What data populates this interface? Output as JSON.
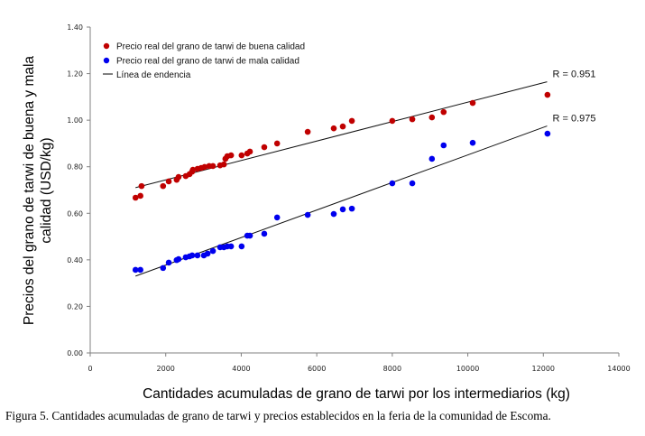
{
  "chart_data": {
    "type": "scatter",
    "title": "",
    "xlabel": "Cantidades acumuladas de grano de tarwi por los intermediarios (kg)",
    "ylabel_lines": [
      "Precios del grano de tarwi de buena y mala",
      "calidad (USD/kg)"
    ],
    "xlim": [
      0,
      14000
    ],
    "ylim": [
      0,
      1.4
    ],
    "x_ticks": [
      0,
      2000,
      4000,
      6000,
      8000,
      10000,
      12000,
      14000
    ],
    "x_tick_labels": [
      "0",
      "2000",
      "4000",
      "6000",
      "8000",
      "10000",
      "12000",
      "14000"
    ],
    "y_ticks": [
      0,
      0.2,
      0.4,
      0.6,
      0.8,
      1.0,
      1.2,
      1.4
    ],
    "y_tick_labels": [
      "0.00",
      "0.20",
      "0.40",
      "0.60",
      "0.80",
      "1.00",
      "1.20",
      "1.40"
    ],
    "grid": false,
    "legend_position": "top-left",
    "legend": [
      {
        "label": "Precio real del grano de tarwi de buena calidad",
        "marker": "dot",
        "color": "#c00000"
      },
      {
        "label": "Precio real del grano de tarwi de mala calidad",
        "marker": "dot",
        "color": "#0000ee"
      },
      {
        "label": "Línea de endencia",
        "marker": "line",
        "color": "#000000"
      }
    ],
    "series": [
      {
        "name": "Precio real del grano de tarwi de buena calidad",
        "color": "#c00000",
        "points": [
          [
            1200,
            0.667
          ],
          [
            1330,
            0.675
          ],
          [
            1360,
            0.717
          ],
          [
            1930,
            0.717
          ],
          [
            2080,
            0.737
          ],
          [
            2290,
            0.744
          ],
          [
            2340,
            0.756
          ],
          [
            2530,
            0.76
          ],
          [
            2630,
            0.768
          ],
          [
            2700,
            0.779
          ],
          [
            2720,
            0.787
          ],
          [
            2840,
            0.791
          ],
          [
            2940,
            0.795
          ],
          [
            3030,
            0.799
          ],
          [
            3150,
            0.803
          ],
          [
            3250,
            0.803
          ],
          [
            3440,
            0.806
          ],
          [
            3540,
            0.81
          ],
          [
            3580,
            0.834
          ],
          [
            3630,
            0.845
          ],
          [
            3730,
            0.849
          ],
          [
            4010,
            0.849
          ],
          [
            4160,
            0.857
          ],
          [
            4230,
            0.865
          ],
          [
            4610,
            0.884
          ],
          [
            4950,
            0.9
          ],
          [
            5760,
            0.95
          ],
          [
            6450,
            0.965
          ],
          [
            6690,
            0.973
          ],
          [
            6930,
            0.997
          ],
          [
            8000,
            0.997
          ],
          [
            8530,
            1.004
          ],
          [
            9050,
            1.012
          ],
          [
            9360,
            1.035
          ],
          [
            10130,
            1.074
          ],
          [
            12110,
            1.109
          ]
        ],
        "trendline": {
          "x": [
            1200,
            12100
          ],
          "y": [
            0.71,
            1.165
          ]
        },
        "r2_label": "R  = 0.951"
      },
      {
        "name": "Precio real del grano de tarwi de mala calidad",
        "color": "#0000ee",
        "points": [
          [
            1200,
            0.357
          ],
          [
            1330,
            0.357
          ],
          [
            1930,
            0.365
          ],
          [
            2080,
            0.388
          ],
          [
            2290,
            0.399
          ],
          [
            2340,
            0.403
          ],
          [
            2530,
            0.411
          ],
          [
            2630,
            0.415
          ],
          [
            2700,
            0.419
          ],
          [
            2840,
            0.419
          ],
          [
            3010,
            0.419
          ],
          [
            3110,
            0.427
          ],
          [
            3250,
            0.438
          ],
          [
            3440,
            0.454
          ],
          [
            3540,
            0.454
          ],
          [
            3630,
            0.458
          ],
          [
            3730,
            0.458
          ],
          [
            4010,
            0.458
          ],
          [
            4160,
            0.504
          ],
          [
            4230,
            0.504
          ],
          [
            4610,
            0.512
          ],
          [
            4950,
            0.582
          ],
          [
            5760,
            0.593
          ],
          [
            6450,
            0.597
          ],
          [
            6690,
            0.617
          ],
          [
            6930,
            0.62
          ],
          [
            8000,
            0.729
          ],
          [
            8530,
            0.729
          ],
          [
            9050,
            0.834
          ],
          [
            9360,
            0.892
          ],
          [
            10130,
            0.903
          ],
          [
            12110,
            0.942
          ]
        ],
        "trendline": {
          "x": [
            1200,
            12100
          ],
          "y": [
            0.33,
            0.975
          ]
        },
        "r2_label": "R  = 0.975"
      }
    ]
  },
  "caption": "Figura 5. Cantidades acumuladas de grano de tarwi y precios establecidos en la feria de la comunidad de Escoma."
}
